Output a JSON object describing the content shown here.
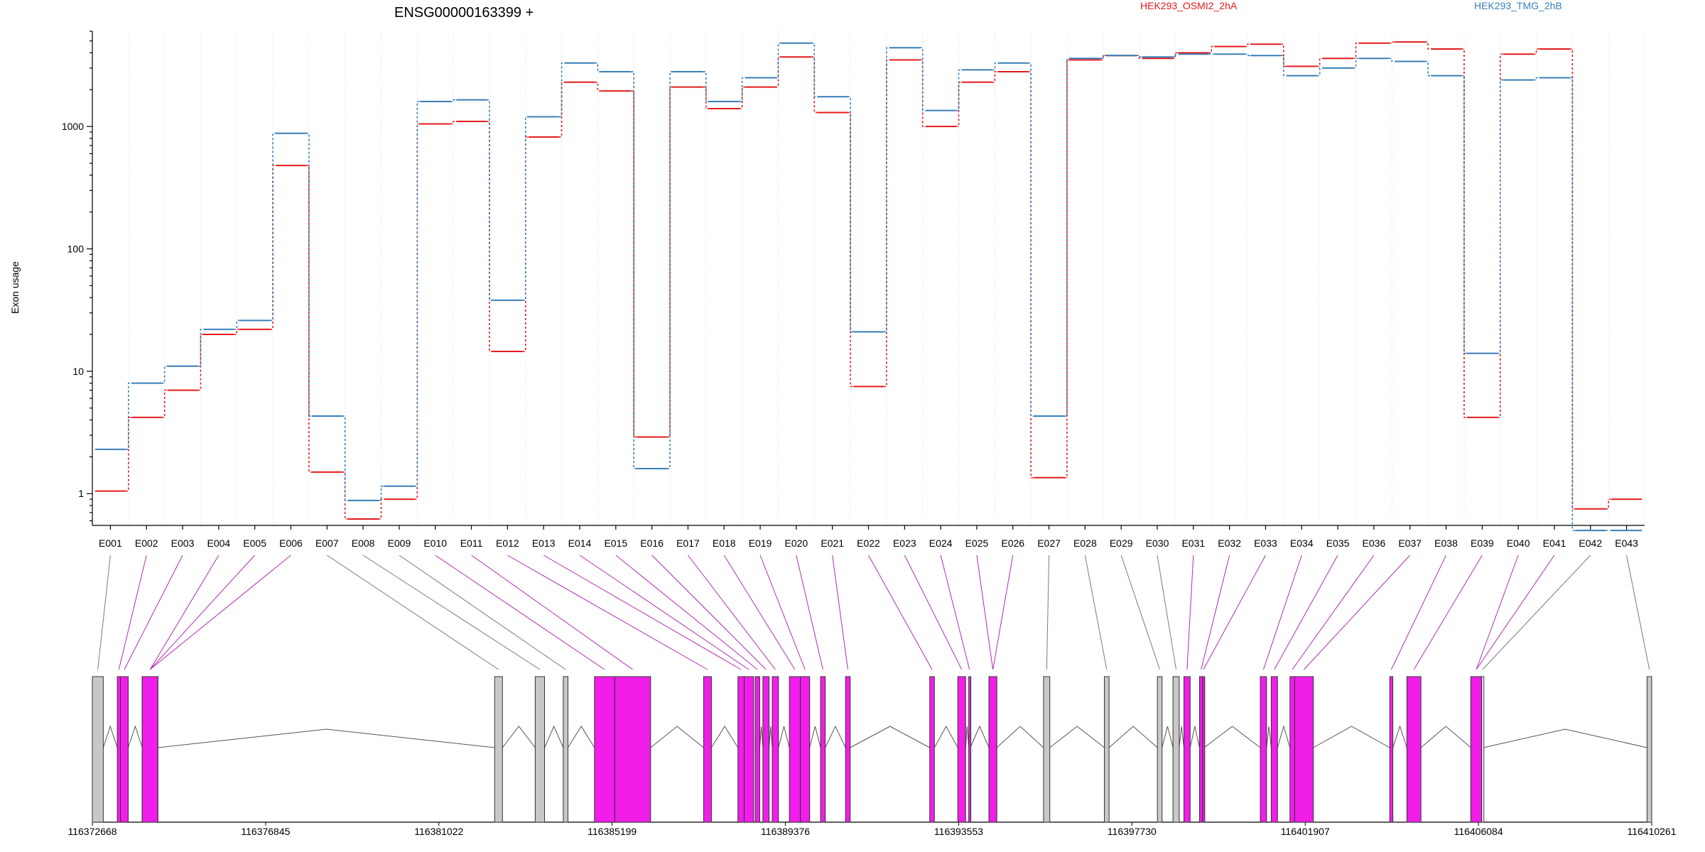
{
  "chart_data": {
    "type": "line",
    "title": "ENSG00000163399 +",
    "xlabel": "",
    "ylabel": "Exon usage",
    "yscale": "log",
    "ylim": [
      0.55,
      6000
    ],
    "yticks": [
      1,
      10,
      100,
      1000
    ],
    "ytick_labels": [
      "1",
      "10",
      "100",
      "1000"
    ],
    "grid": "vertical dotted lines at exon boundaries",
    "legend_placement": "top",
    "categories": [
      "E001",
      "E002",
      "E003",
      "E004",
      "E005",
      "E006",
      "E007",
      "E008",
      "E009",
      "E010",
      "E011",
      "E012",
      "E013",
      "E014",
      "E015",
      "E016",
      "E017",
      "E018",
      "E019",
      "E020",
      "E021",
      "E022",
      "E023",
      "E024",
      "E025",
      "E026",
      "E027",
      "E028",
      "E029",
      "E030",
      "E031",
      "E032",
      "E033",
      "E034",
      "E035",
      "E036",
      "E037",
      "E038",
      "E039",
      "E040",
      "E041",
      "E042",
      "E043"
    ],
    "series": [
      {
        "name": "HEK293_OSMI2_2hA",
        "color": "#e41a1c",
        "values": [
          1.05,
          4.2,
          7.0,
          20,
          22,
          480,
          1.5,
          0.62,
          0.9,
          1050,
          1100,
          14.5,
          820,
          2300,
          1950,
          2.9,
          2100,
          1400,
          2100,
          3700,
          1300,
          7.5,
          3500,
          1000,
          2300,
          2800,
          1.35,
          3500,
          3800,
          3600,
          4000,
          4500,
          4700,
          3100,
          3600,
          4800,
          4900,
          4300,
          4.2,
          3900,
          4300,
          0.75,
          0.9
        ]
      },
      {
        "name": "HEK293_TMG_2hB",
        "color": "#377eb8",
        "values": [
          2.3,
          8,
          11,
          22,
          26,
          880,
          4.3,
          0.88,
          1.15,
          1600,
          1650,
          38,
          1200,
          3300,
          2800,
          1.6,
          2800,
          1600,
          2500,
          4800,
          1750,
          21,
          4400,
          1350,
          2900,
          3300,
          4.3,
          3600,
          3800,
          3700,
          3900,
          3900,
          3800,
          2600,
          3000,
          3600,
          3400,
          2600,
          14,
          2400,
          2500,
          0.5,
          0.5
        ]
      }
    ],
    "gene_model": {
      "coordinate_ticks": [
        "116372668",
        "116376845",
        "116381022",
        "116385199",
        "116389376",
        "116393553",
        "116397730",
        "116401907",
        "116406084",
        "116410261"
      ],
      "exon_fill_colors": {
        "tested": "#c8c8c8",
        "significant": "#f01ee8",
        "untested": "#ffffff"
      },
      "exon_states": [
        "tested",
        "significant",
        "significant",
        "significant",
        "significant",
        "significant",
        "tested",
        "tested",
        "tested",
        "significant",
        "significant",
        "significant",
        "significant",
        "significant",
        "significant",
        "significant",
        "significant",
        "significant",
        "significant",
        "significant",
        "significant",
        "significant",
        "significant",
        "significant",
        "significant",
        "significant",
        "tested",
        "tested",
        "tested",
        "tested",
        "significant",
        "significant",
        "significant",
        "significant",
        "significant",
        "significant",
        "significant",
        "significant",
        "significant",
        "significant",
        "significant",
        "untested",
        "tested"
      ]
    }
  }
}
